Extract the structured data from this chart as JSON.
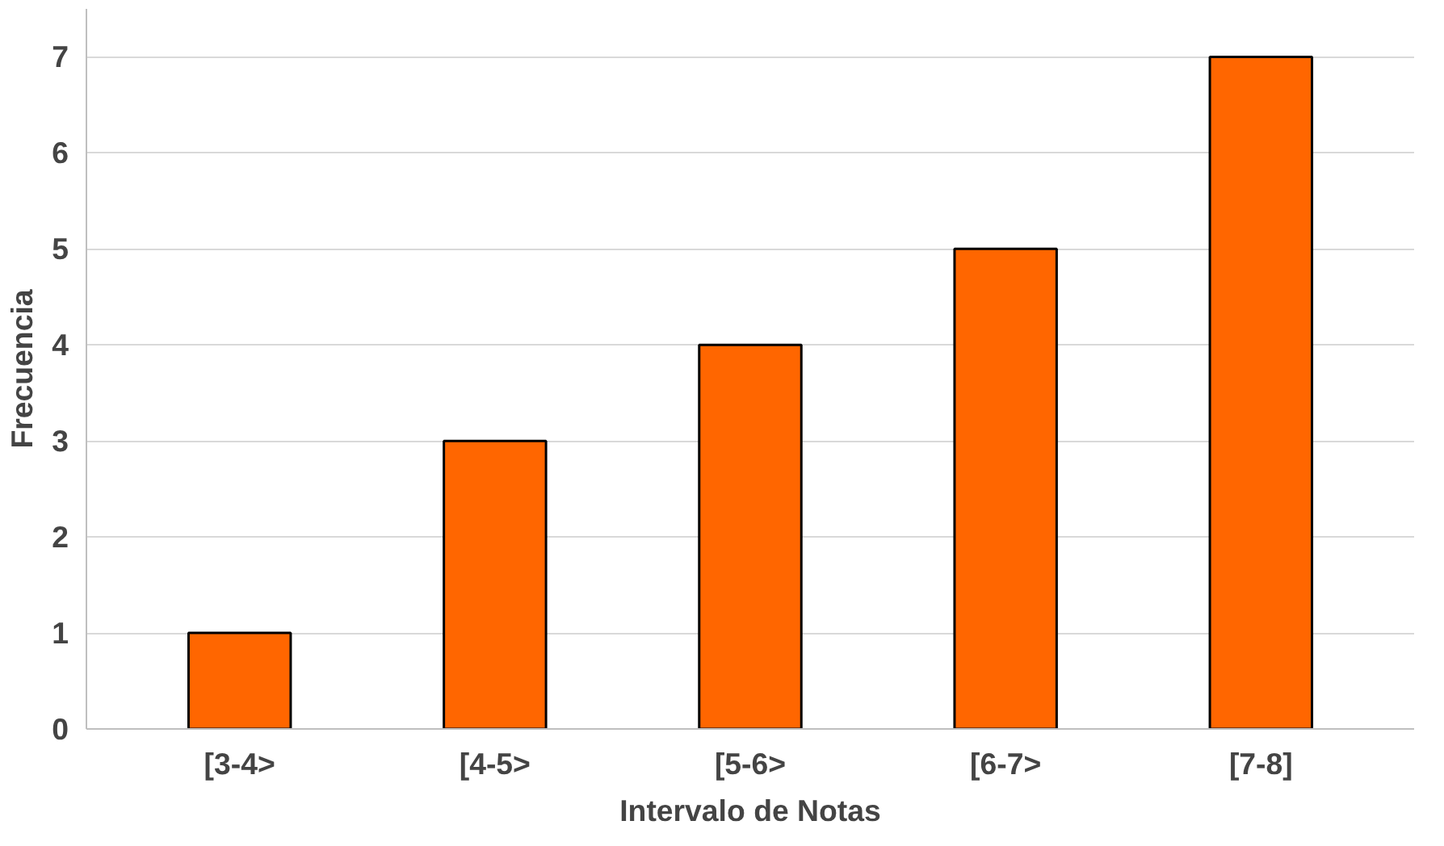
{
  "chart_data": {
    "type": "bar",
    "xlabel": "Intervalo de Notas",
    "ylabel": "Frecuencia",
    "categories": [
      "[3-4>",
      "[4-5>",
      "[5-6>",
      "[6-7>",
      "[7-8]"
    ],
    "values": [
      1,
      3,
      4,
      5,
      7
    ],
    "color": "#ff6600",
    "ylim": [
      0,
      7.5
    ],
    "yticks": [
      0,
      1,
      2,
      3,
      4,
      5,
      6,
      7
    ],
    "grid": "y"
  }
}
